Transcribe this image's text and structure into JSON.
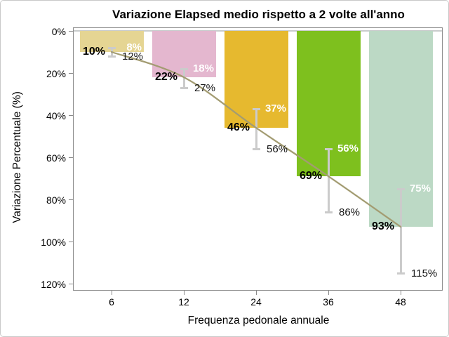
{
  "chart_data": {
    "type": "bar",
    "title": "Variazione Elapsed medio rispetto a 2 volte all'anno",
    "xlabel": "Frequenza pedonale annuale",
    "ylabel": "Variazione Percentuale (%)",
    "categories": [
      "6",
      "12",
      "24",
      "36",
      "48"
    ],
    "values": [
      10,
      22,
      46,
      69,
      93
    ],
    "error_upper": [
      8,
      18,
      37,
      56,
      75
    ],
    "error_lower": [
      12,
      27,
      56,
      86,
      115
    ],
    "mean_labels": [
      "10%",
      "22%",
      "46%",
      "69%",
      "93%"
    ],
    "upper_labels": [
      "8%",
      "18%",
      "37%",
      "56%",
      "75%"
    ],
    "lower_labels": [
      "12%",
      "27%",
      "56%",
      "86%",
      "115%"
    ],
    "bar_colors": [
      "#e5d593",
      "#e4b7cf",
      "#e6b92f",
      "#7ec01e",
      "#bcd9c5"
    ],
    "y_ticks": [
      "0%",
      "20%",
      "40%",
      "60%",
      "80%",
      "100%",
      "120%"
    ],
    "y_tick_values": [
      0,
      20,
      40,
      60,
      80,
      100,
      120
    ],
    "ylim": [
      0,
      120
    ],
    "y_axis_reversed": true,
    "bars_hang_from_zero": true,
    "line_color": "#a39c72",
    "error_bar_color": "#cbcbcb",
    "grid": "off",
    "legend": "none"
  }
}
